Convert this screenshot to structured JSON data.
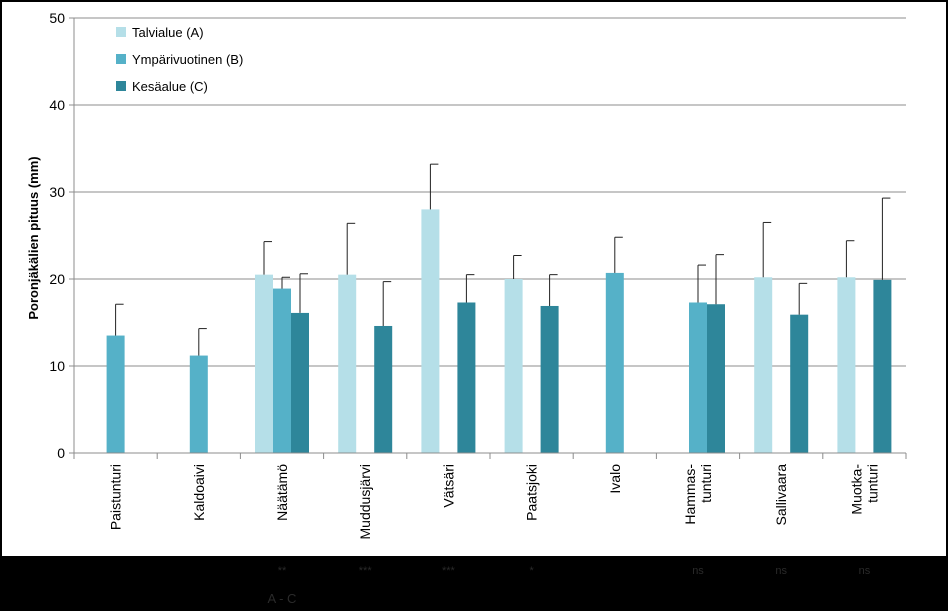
{
  "chart_data": {
    "type": "bar",
    "ylabel": "Poronjäkälien pituus (mm)",
    "ylim": [
      0,
      50
    ],
    "yticks": [
      0,
      10,
      20,
      30,
      40,
      50
    ],
    "grid": true,
    "legend_position": "top-left",
    "categories": [
      "Paistunturi",
      "Kaldoaivi",
      "Näätämö",
      "Muddusjärvi",
      "Vätsäri",
      "Paatsjoki",
      "Ivalo",
      "Hammas-\ntunturi",
      "Sallivaara",
      "Muotka-\ntunturi"
    ],
    "series": [
      {
        "name": "Talvialue (A)",
        "color": "#b5dfe8",
        "values": [
          null,
          null,
          20.5,
          20.5,
          28.0,
          20.0,
          null,
          null,
          20.2,
          20.2
        ],
        "errors": [
          null,
          null,
          3.8,
          5.9,
          5.2,
          2.7,
          null,
          null,
          6.3,
          4.2
        ]
      },
      {
        "name": "Ympärivuotinen (B)",
        "color": "#55b1c8",
        "values": [
          13.5,
          11.2,
          18.9,
          null,
          null,
          null,
          20.7,
          17.3,
          null,
          null
        ],
        "errors": [
          3.6,
          3.1,
          1.3,
          null,
          null,
          null,
          4.1,
          4.3,
          null,
          null
        ]
      },
      {
        "name": "Kesäalue (C)",
        "color": "#2e869a",
        "values": [
          null,
          null,
          16.1,
          14.6,
          17.3,
          16.9,
          null,
          17.1,
          15.9,
          19.9
        ],
        "errors": [
          null,
          null,
          4.5,
          5.1,
          3.2,
          3.6,
          null,
          5.7,
          3.6,
          9.4
        ]
      }
    ],
    "annotations": [
      {
        "category": "Näätämö",
        "text": "**"
      },
      {
        "category": "Muddusjärvi",
        "text": "***"
      },
      {
        "category": "Vätsäri",
        "text": "***"
      },
      {
        "category": "Paatsjoki",
        "text": "*"
      },
      {
        "category": "Hammas-\ntunturi",
        "text": "ns"
      },
      {
        "category": "Sallivaara",
        "text": "ns"
      },
      {
        "category": "Muotka-\ntunturi",
        "text": "ns"
      },
      {
        "category": "Näätämö",
        "text": "A - C"
      }
    ]
  }
}
